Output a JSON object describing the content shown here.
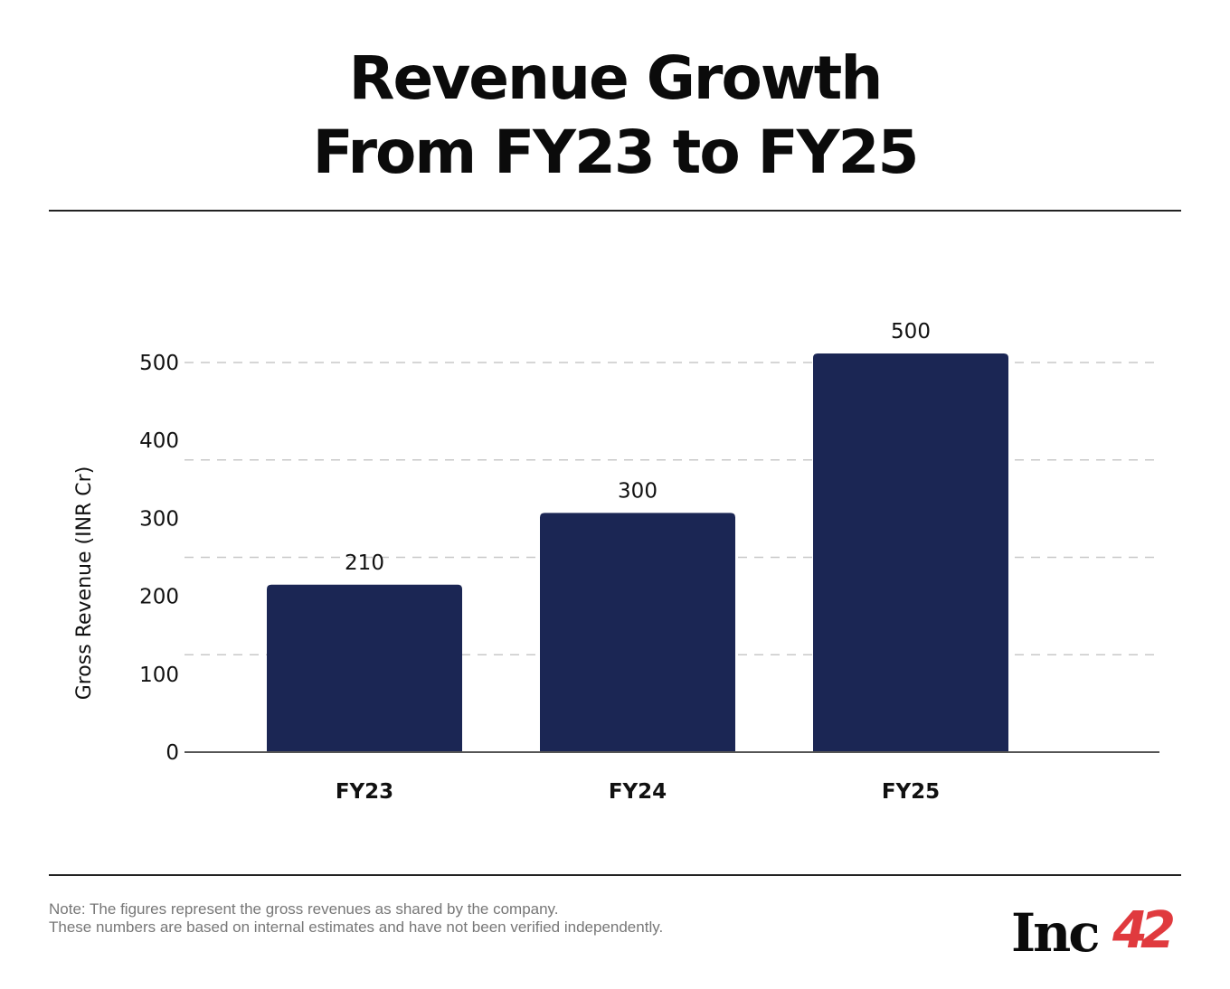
{
  "chart_data": {
    "type": "bar",
    "title": "Revenue Growth From FY23 to FY25",
    "title_lines": [
      "Revenue Growth",
      "From FY23 to FY25"
    ],
    "categories": [
      "FY23",
      "FY24",
      "FY25"
    ],
    "values": [
      210,
      300,
      500
    ],
    "data_labels": [
      "210",
      "300",
      "500"
    ],
    "xlabel": "",
    "ylabel": "Gross Revenue (INR Cr)",
    "ylim": [
      0,
      500
    ],
    "yticks": [
      0,
      100,
      200,
      300,
      400,
      500
    ],
    "ytick_labels": [
      "0",
      "100",
      "200",
      "300",
      "400",
      "500"
    ],
    "grid": true,
    "bar_color": "#1b2654"
  },
  "footer": {
    "note_lines": [
      "Note: The figures represent the gross revenues as shared by the company.",
      "These numbers are based on internal estimates and have not been verified independently."
    ],
    "logo_text": "Inc42",
    "logo_colors": {
      "inc": "#0b0b0b",
      "num": "#e03a3e"
    }
  }
}
